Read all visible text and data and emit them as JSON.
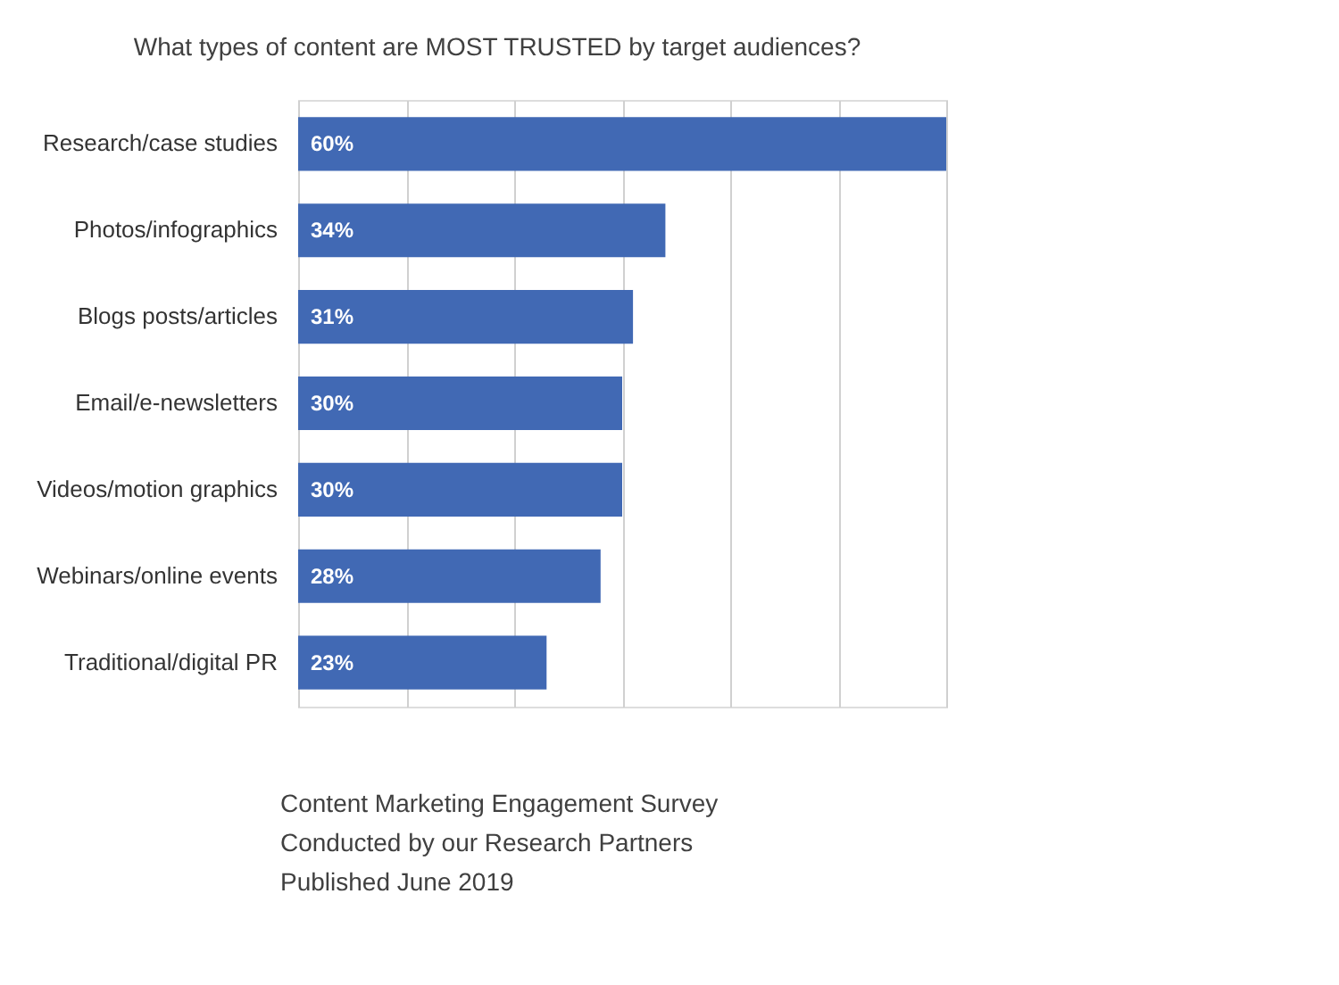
{
  "chart_data": {
    "type": "bar",
    "orientation": "horizontal",
    "title": "What types of content are MOST TRUSTED by target audiences?",
    "categories": [
      "Research/case studies",
      "Photos/infographics",
      "Blogs posts/articles",
      "Email/e-newsletters",
      "Videos/motion graphics",
      "Webinars/online events",
      "Traditional/digital PR"
    ],
    "values": [
      60,
      34,
      31,
      30,
      30,
      28,
      23
    ],
    "value_labels": [
      "60%",
      "34%",
      "31%",
      "30%",
      "30%",
      "28%",
      "23%"
    ],
    "color": "#4169b4",
    "xlim": [
      0,
      60
    ],
    "xticks": [
      {
        "value": 0,
        "label": null
      },
      {
        "value": 10,
        "label": null
      },
      {
        "value": 20,
        "label": null
      },
      {
        "value": 30,
        "label": null
      },
      {
        "value": 40,
        "label": null
      },
      {
        "value": 50,
        "label": null
      },
      {
        "value": 60,
        "label": null
      }
    ],
    "grid": "x",
    "tick_labels": "y",
    "annotations": [
      "Content Marketing Engagement Survey",
      "Conducted by our Research Partners",
      "Published June 2019"
    ]
  }
}
